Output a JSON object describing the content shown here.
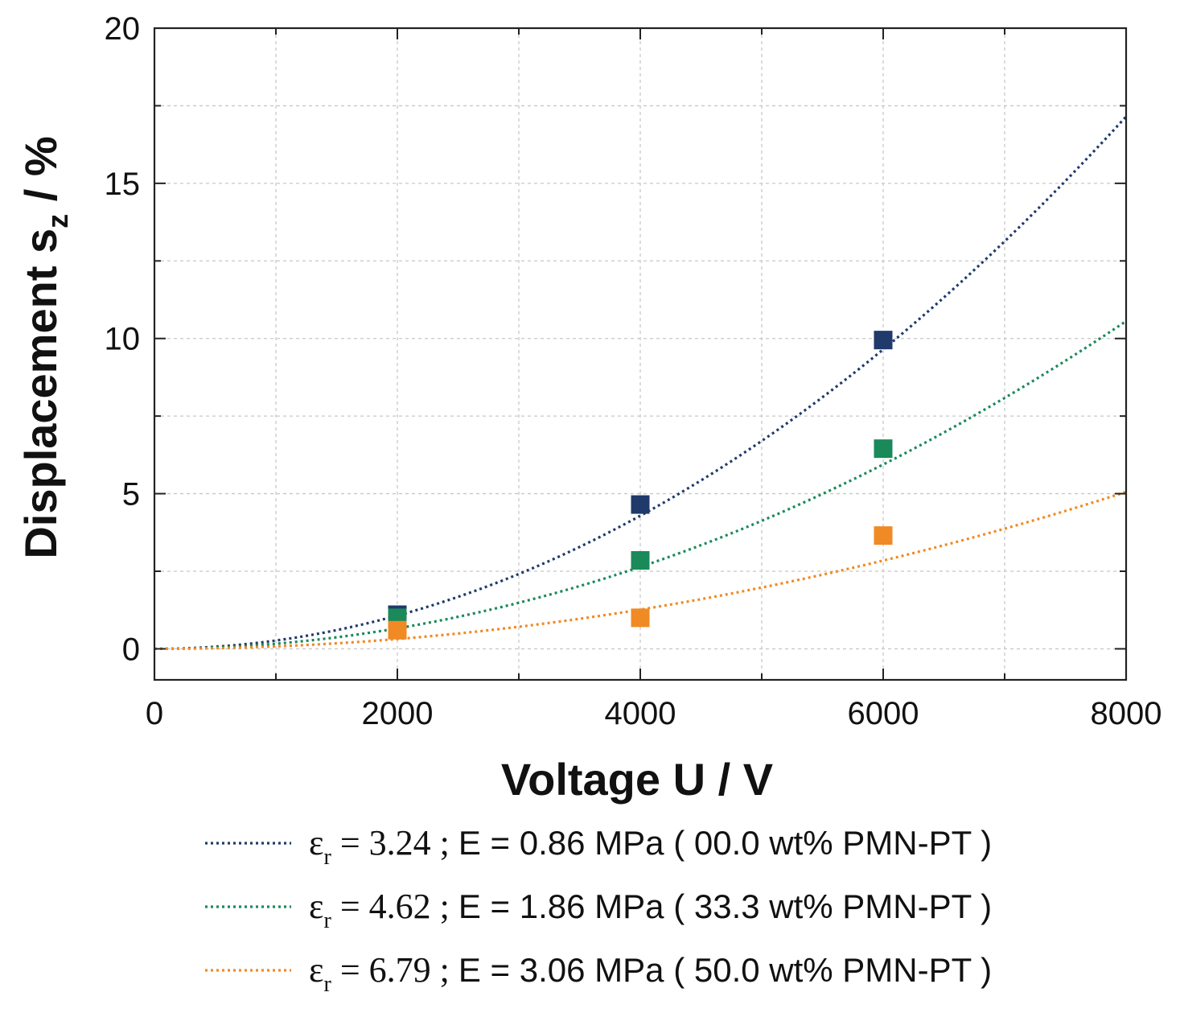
{
  "chart_data": {
    "type": "scatter",
    "xlabel": "Voltage U / V",
    "ylabel": {
      "main": "Displacement s",
      "sub": "z",
      "unit": " / %"
    },
    "xlim": [
      0,
      8000
    ],
    "ylim": [
      -1,
      20
    ],
    "x_ticks": [
      0,
      2000,
      4000,
      6000,
      8000
    ],
    "x_tick_labels": [
      "0",
      "2000",
      "4000",
      "6000",
      "8000"
    ],
    "y_ticks": [
      0,
      5,
      10,
      15,
      20
    ],
    "y_tick_labels": [
      "0",
      "5",
      "10",
      "15",
      "20"
    ],
    "grid": true,
    "legend_position": "bottom",
    "series": [
      {
        "name": "00.0 wt% PMN-PT",
        "color": "#1f3a6b",
        "marker": "square",
        "line_style": "dotted",
        "legend": {
          "symbol": "ε",
          "sub": "r",
          "eq": " = ",
          "eps_value": "3.24",
          "sep": " ; ",
          "text": "E = 0.86 MPa ( 00.0 wt% PMN-PT )"
        },
        "points": [
          {
            "x": 2000,
            "y": 1.1
          },
          {
            "x": 4000,
            "y": 4.65
          },
          {
            "x": 6000,
            "y": 9.95
          }
        ],
        "fit_coefficient": 2.68e-07
      },
      {
        "name": "33.3 wt% PMN-PT",
        "color": "#1a8a5a",
        "marker": "square",
        "line_style": "dotted",
        "legend": {
          "symbol": "ε",
          "sub": "r",
          "eq": " = ",
          "eps_value": "4.62",
          "sep": " ; ",
          "text": "E = 1.86 MPa ( 33.3 wt% PMN-PT )"
        },
        "points": [
          {
            "x": 2000,
            "y": 1.0
          },
          {
            "x": 4000,
            "y": 2.85
          },
          {
            "x": 6000,
            "y": 6.45
          }
        ],
        "fit_coefficient": 1.65e-07
      },
      {
        "name": "50.0 wt% PMN-PT",
        "color": "#f08a24",
        "marker": "square",
        "line_style": "dotted",
        "legend": {
          "symbol": "ε",
          "sub": "r",
          "eq": " = ",
          "eps_value": "6.79",
          "sep": " ; ",
          "text": "E = 3.06 MPa ( 50.0 wt% PMN-PT )"
        },
        "points": [
          {
            "x": 2000,
            "y": 0.6
          },
          {
            "x": 4000,
            "y": 1.0
          },
          {
            "x": 6000,
            "y": 3.65
          }
        ],
        "fit_coefficient": 7.9e-08
      }
    ]
  }
}
